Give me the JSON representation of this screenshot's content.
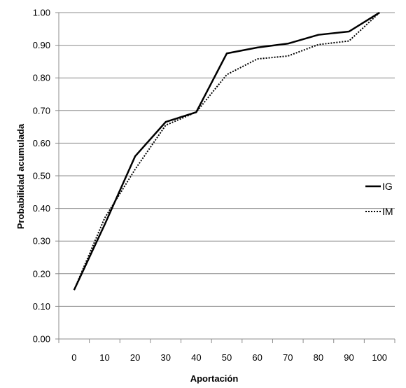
{
  "chart_data": {
    "type": "line",
    "title": "",
    "xlabel": "Aportación",
    "ylabel": "Probabilidad  acumulada",
    "x": [
      0,
      10,
      20,
      30,
      40,
      50,
      60,
      70,
      80,
      90,
      100
    ],
    "x_tick_labels": [
      "0",
      "10",
      "20",
      "30",
      "40",
      "50",
      "60",
      "70",
      "80",
      "90",
      "100"
    ],
    "y_ticks": [
      0,
      0.1,
      0.2,
      0.3,
      0.4,
      0.5,
      0.6,
      0.7,
      0.8,
      0.9,
      1.0
    ],
    "y_tick_labels": [
      "0.00",
      "0.10",
      "0.20",
      "0.30",
      "0.40",
      "0.50",
      "0.60",
      "0.70",
      "0.80",
      "0.90",
      "1.00"
    ],
    "ylim": [
      0,
      1.0
    ],
    "grid": "horizontal",
    "legend_position": "right",
    "series": [
      {
        "name": "IG",
        "style": "solid",
        "color": "#000000",
        "values": [
          0.15,
          0.35,
          0.56,
          0.665,
          0.695,
          0.875,
          0.893,
          0.905,
          0.932,
          0.942,
          1.0
        ]
      },
      {
        "name": "IM",
        "style": "dotted",
        "color": "#000000",
        "values": [
          0.15,
          0.37,
          0.52,
          0.655,
          0.695,
          0.81,
          0.858,
          0.867,
          0.902,
          0.913,
          1.0
        ]
      }
    ]
  }
}
